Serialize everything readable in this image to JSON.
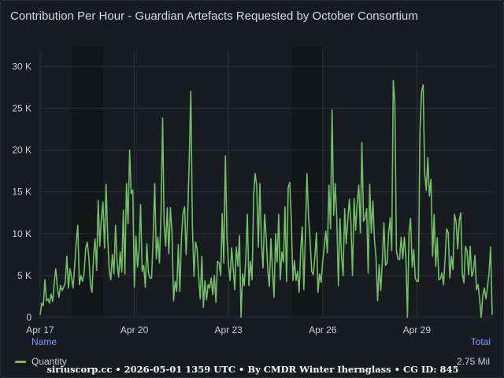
{
  "panel": {
    "title": "Contribution Per Hour - Guardian Artefacts Requested by October Consortium"
  },
  "legend": {
    "name_header": "Name",
    "total_header": "Total",
    "series_label": "Quantity",
    "series_total": "2.75 Mil"
  },
  "footer": "siriuscorp.cc • 2026-05-01 1359 UTC • By CMDR Winter Iherngl​ass • CG ID: 845",
  "colors": {
    "series": "#73bf69",
    "grid": "#2c2f36",
    "shade": "#141619"
  },
  "chart_data": {
    "type": "line",
    "title": "Contribution Per Hour - Guardian Artefacts Requested by October Consortium",
    "ylim": [
      0,
      32000
    ],
    "xlim": [
      -0.1,
      14.45
    ],
    "y_ticks": [
      {
        "value": 0,
        "label": "0"
      },
      {
        "value": 5000,
        "label": "5 K"
      },
      {
        "value": 10000,
        "label": "10 K"
      },
      {
        "value": 15000,
        "label": "15 K"
      },
      {
        "value": 20000,
        "label": "20 K"
      },
      {
        "value": 25000,
        "label": "25 K"
      },
      {
        "value": 30000,
        "label": "30 K"
      }
    ],
    "x_ticks": [
      {
        "value": 0,
        "label": "Apr 17"
      },
      {
        "value": 3,
        "label": "Apr 20"
      },
      {
        "value": 6,
        "label": "Apr 23"
      },
      {
        "value": 9,
        "label": "Apr 26"
      },
      {
        "value": 12,
        "label": "Apr 29"
      }
    ],
    "shaded_ranges": [
      [
        1,
        2
      ],
      [
        8,
        9
      ]
    ],
    "series": [
      {
        "name": "Quantity",
        "x": [
          0.0,
          0.05,
          0.1,
          0.15,
          0.2,
          0.25,
          0.3,
          0.35,
          0.4,
          0.45,
          0.5,
          0.55,
          0.6,
          0.65,
          0.7,
          0.75,
          0.8,
          0.85,
          0.9,
          0.95,
          1.0,
          1.05,
          1.1,
          1.15,
          1.2,
          1.25,
          1.3,
          1.35,
          1.4,
          1.45,
          1.5,
          1.55,
          1.6,
          1.65,
          1.7,
          1.75,
          1.8,
          1.85,
          1.9,
          1.95,
          2.0,
          2.05,
          2.1,
          2.15,
          2.2,
          2.25,
          2.3,
          2.35,
          2.4,
          2.45,
          2.5,
          2.55,
          2.6,
          2.65,
          2.7,
          2.75,
          2.8,
          2.85,
          2.9,
          2.95,
          3.0,
          3.05,
          3.1,
          3.15,
          3.2,
          3.25,
          3.3,
          3.35,
          3.4,
          3.45,
          3.5,
          3.55,
          3.6,
          3.65,
          3.7,
          3.75,
          3.8,
          3.85,
          3.9,
          3.95,
          4.0,
          4.05,
          4.1,
          4.15,
          4.2,
          4.25,
          4.3,
          4.35,
          4.4,
          4.45,
          4.5,
          4.55,
          4.6,
          4.65,
          4.7,
          4.75,
          4.8,
          4.85,
          4.9,
          4.95,
          5.0,
          5.05,
          5.1,
          5.15,
          5.2,
          5.25,
          5.3,
          5.35,
          5.4,
          5.45,
          5.5,
          5.55,
          5.6,
          5.65,
          5.7,
          5.75,
          5.8,
          5.85,
          5.9,
          5.95,
          6.0,
          6.05,
          6.1,
          6.15,
          6.2,
          6.25,
          6.3,
          6.35,
          6.4,
          6.45,
          6.5,
          6.55,
          6.6,
          6.65,
          6.7,
          6.75,
          6.8,
          6.85,
          6.9,
          6.95,
          7.0,
          7.05,
          7.1,
          7.15,
          7.2,
          7.25,
          7.3,
          7.35,
          7.4,
          7.45,
          7.5,
          7.55,
          7.6,
          7.65,
          7.7,
          7.75,
          7.8,
          7.85,
          7.9,
          7.95,
          8.0,
          8.05,
          8.1,
          8.15,
          8.2,
          8.25,
          8.3,
          8.35,
          8.4,
          8.45,
          8.5,
          8.55,
          8.6,
          8.65,
          8.7,
          8.75,
          8.8,
          8.85,
          8.9,
          8.95,
          9.0,
          9.05,
          9.1,
          9.15,
          9.2,
          9.25,
          9.3,
          9.35,
          9.4,
          9.45,
          9.5,
          9.55,
          9.6,
          9.65,
          9.7,
          9.75,
          9.8,
          9.85,
          9.9,
          9.95,
          10.0,
          10.05,
          10.1,
          10.15,
          10.2,
          10.25,
          10.3,
          10.35,
          10.4,
          10.45,
          10.5,
          10.55,
          10.6,
          10.65,
          10.7,
          10.75,
          10.8,
          10.85,
          10.9,
          10.95,
          11.0,
          11.05,
          11.1,
          11.15,
          11.2,
          11.25,
          11.3,
          11.35,
          11.4,
          11.45,
          11.5,
          11.55,
          11.6,
          11.65,
          11.7,
          11.75,
          11.8,
          11.85,
          11.9,
          11.95,
          12.0,
          12.05,
          12.1,
          12.15,
          12.2,
          12.25,
          12.3,
          12.35,
          12.4,
          12.45,
          12.5,
          12.55,
          12.6,
          12.65,
          12.7,
          12.75,
          12.8,
          12.85,
          12.9,
          12.95,
          13.0,
          13.05,
          13.1,
          13.15,
          13.2,
          13.25,
          13.3,
          13.35,
          13.4,
          13.45,
          13.5,
          13.55,
          13.6,
          13.65,
          13.7,
          13.75,
          13.8,
          13.85,
          13.9,
          13.95,
          14.0,
          14.05,
          14.1,
          14.15,
          14.2,
          14.25,
          14.3,
          14.35,
          14.4
        ],
        "y": [
          300,
          1700,
          1400,
          4500,
          2000,
          2200,
          1700,
          2800,
          1900,
          4200,
          5800,
          3500,
          2400,
          3800,
          3200,
          3600,
          4200,
          7300,
          3500,
          5800,
          4800,
          3500,
          6100,
          9000,
          11000,
          3900,
          5000,
          4300,
          5300,
          8200,
          9000,
          7200,
          4000,
          3000,
          7200,
          9400,
          5600,
          14000,
          8500,
          11800,
          13800,
          8300,
          15900,
          9800,
          5600,
          4500,
          7500,
          5200,
          11000,
          6700,
          4800,
          7800,
          5400,
          12800,
          5200,
          16000,
          11200,
          20000,
          14800,
          15200,
          3600,
          9700,
          6000,
          8000,
          13500,
          5500,
          6200,
          3600,
          8800,
          5300,
          4700,
          4700,
          9500,
          16000,
          7000,
          9600,
          6500,
          12500,
          23800,
          11100,
          8500,
          13100,
          7600,
          13100,
          10300,
          2000,
          4300,
          3100,
          8700,
          3100,
          9500,
          12400,
          13200,
          7500,
          12000,
          18900,
          27000,
          11100,
          4900,
          9000,
          8200,
          4800,
          2200,
          7300,
          1200,
          4400,
          2100,
          3900,
          3500,
          4700,
          2700,
          5000,
          1800,
          6700,
          6500,
          5000,
          12400,
          6500,
          19300,
          9500,
          6300,
          4400,
          8300,
          5900,
          3300,
          8400,
          6100,
          9800,
          0,
          5200,
          3800,
          6900,
          12300,
          3800,
          6700,
          4500,
          14600,
          17200,
          15700,
          8400,
          16000,
          9000,
          5900,
          12300,
          9600,
          5700,
          3700,
          9400,
          5600,
          2400,
          10000,
          6600,
          12300,
          4500,
          7800,
          6600,
          13200,
          4300,
          15500,
          16100,
          11600,
          4400,
          6800,
          4400,
          5500,
          3000,
          8000,
          10800,
          3300,
          9900,
          17200,
          12100,
          9100,
          5500,
          5100,
          7200,
          10100,
          3000,
          5200,
          4200,
          6600,
          8400,
          10300,
          7700,
          15800,
          10600,
          24800,
          12200,
          16000,
          11700,
          3800,
          11800,
          7200,
          5000,
          13000,
          8800,
          11600,
          14100,
          11300,
          5000,
          14200,
          10400,
          13800,
          15800,
          10100,
          20900,
          11500,
          11900,
          13000,
          5300,
          15900,
          10100,
          13900,
          9300,
          7100,
          2000,
          6300,
          3200,
          6700,
          11300,
          6200,
          6500,
          10100,
          11900,
          8000,
          28300,
          25700,
          7900,
          7000,
          6900,
          9600,
          7000,
          9600,
          7200,
          0,
          10200,
          11800,
          6000,
          8100,
          4700,
          4300,
          4300,
          22300,
          26900,
          27800,
          17200,
          15200,
          19100,
          14500,
          16500,
          7300,
          12300,
          6100,
          9500,
          4500,
          4600,
          5300,
          3900,
          7000,
          10600,
          10100,
          4700,
          7300,
          5700,
          12300,
          11400,
          8200,
          11600,
          12500,
          5200,
          4100,
          8500,
          7900,
          5100,
          8500,
          4900,
          5500,
          7400,
          3300,
          3900,
          2100,
          0,
          2600,
          3500,
          2200,
          3600,
          5300,
          8400,
          300
        ]
      }
    ]
  }
}
